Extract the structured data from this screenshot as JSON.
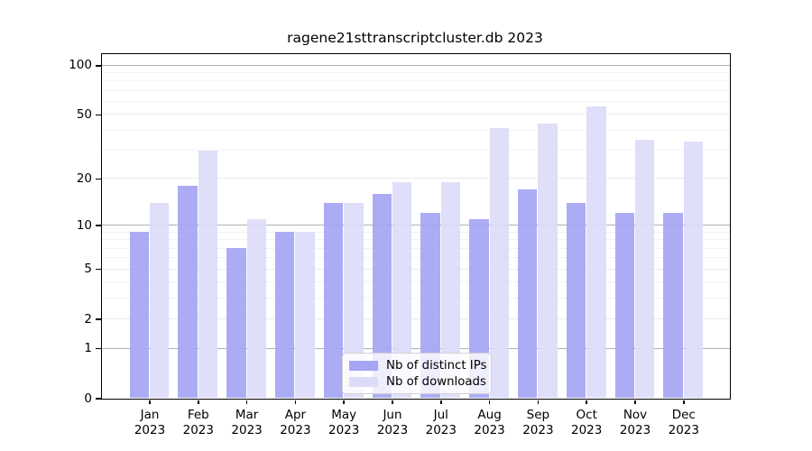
{
  "title": "ragene21sttranscriptcluster.db 2023",
  "chart_data": {
    "type": "bar",
    "title": "ragene21sttranscriptcluster.db 2023",
    "categories": [
      "Jan",
      "Feb",
      "Mar",
      "Apr",
      "May",
      "Jun",
      "Jul",
      "Aug",
      "Sep",
      "Oct",
      "Nov",
      "Dec"
    ],
    "x_second_line": "2023",
    "series": [
      {
        "name": "Nb of distinct IPs",
        "color": "#a5a5f4",
        "values": [
          9,
          18,
          7,
          9,
          14,
          16,
          12,
          11,
          17,
          14,
          12,
          12
        ]
      },
      {
        "name": "Nb of downloads",
        "color": "#dcdcf8",
        "values": [
          14,
          30,
          11,
          9,
          14,
          19,
          19,
          41,
          44,
          56,
          35,
          34
        ]
      }
    ],
    "yscale": "log1p",
    "yticks": [
      0,
      1,
      2,
      5,
      10,
      20,
      50,
      100
    ],
    "minor_yticks": [
      3,
      4,
      6,
      7,
      8,
      9,
      30,
      40,
      60,
      70,
      80,
      90
    ],
    "ylim": [
      0,
      117
    ],
    "grid": "on",
    "legend_position": "bottom-center"
  },
  "colors": {
    "grid_minor": "#f2f2f2",
    "grid_light": "#ebebeb",
    "grid_decade": "#b0b0b0",
    "axis": "#000000",
    "legend_border": "#d2d2d2",
    "background": "#ffffff"
  }
}
